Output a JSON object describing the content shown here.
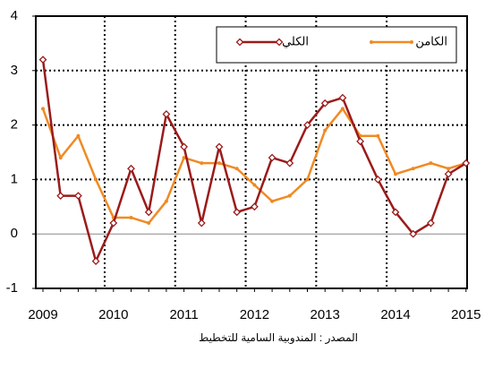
{
  "chart_data": {
    "type": "line",
    "categories": [
      "2009",
      null,
      null,
      null,
      "2010",
      null,
      null,
      null,
      "2011",
      null,
      null,
      null,
      "2012",
      null,
      null,
      null,
      "2013",
      null,
      null,
      null,
      "2014",
      null,
      null,
      null,
      "2015"
    ],
    "series": [
      {
        "name": "الكلي",
        "color": "#9b1b1b",
        "marker": "diamond",
        "values": [
          3.2,
          0.7,
          0.7,
          -0.5,
          0.2,
          1.2,
          0.4,
          2.2,
          1.6,
          0.2,
          1.6,
          0.4,
          0.5,
          1.4,
          1.3,
          2.0,
          2.4,
          2.5,
          1.7,
          1.0,
          0.4,
          0.0,
          0.2,
          1.1,
          1.3
        ]
      },
      {
        "name": "الكامن",
        "color": "#f08a24",
        "marker": "dot",
        "values": [
          2.3,
          1.4,
          1.8,
          1.0,
          0.3,
          0.3,
          0.2,
          0.6,
          1.4,
          1.3,
          1.3,
          1.2,
          0.9,
          0.6,
          0.7,
          1.0,
          1.9,
          2.3,
          1.8,
          1.8,
          1.1,
          1.2,
          1.3,
          1.2,
          1.3
        ]
      }
    ],
    "ylim": [
      -1,
      4
    ],
    "yticks": [
      -1,
      0,
      1,
      2,
      3,
      4
    ],
    "grid": true,
    "legend": "top-right",
    "source": "المصدر : المندوبية السامية للتخطيط"
  }
}
